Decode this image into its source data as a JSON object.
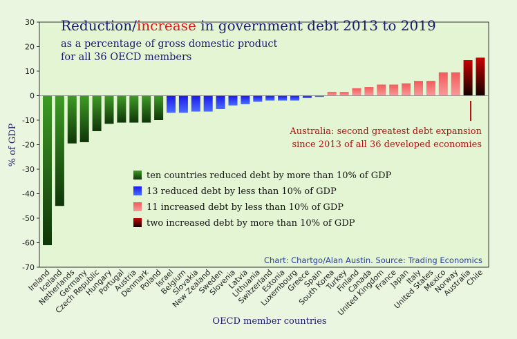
{
  "chart_data": {
    "type": "bar",
    "title_part1": "Reduction/",
    "title_highlight": "increase",
    "title_part2": " in government debt 2013 to 2019",
    "subtitle_line1": "as a percentage of gross domestic product",
    "subtitle_line2": "for all 36 OECD members",
    "xlabel": "OECD member countries",
    "ylabel": "% of GDP",
    "ylim": [
      -70,
      30
    ],
    "yticks": [
      -70,
      -60,
      -50,
      -40,
      -30,
      -20,
      -10,
      0,
      10,
      20,
      30
    ],
    "grid": false,
    "legend_position": "center",
    "categories": [
      "Ireland",
      "Iceland",
      "Netherlands",
      "Germany",
      "Czech Republic",
      "Hungary",
      "Portugal",
      "Austria",
      "Denmark",
      "Poland",
      "Israel",
      "Belgium",
      "Slovakia",
      "New Zealand",
      "Sweden",
      "Slovenia",
      "Latvia",
      "Lithuania",
      "Switzerland",
      "Estonia",
      "Luxembourg",
      "Greece",
      "Spain",
      "South Korea",
      "Turkey",
      "Finland",
      "Canada",
      "United Kingdom",
      "France",
      "Japan",
      "Italy",
      "United States",
      "Mexico",
      "Norway",
      "Australia",
      "Chile"
    ],
    "values": [
      -61,
      -45,
      -19.5,
      -19,
      -14.5,
      -11.5,
      -11,
      -11,
      -11,
      -10,
      -7,
      -7,
      -6.5,
      -6.5,
      -5.5,
      -4,
      -3.5,
      -2.5,
      -2,
      -2,
      -2,
      -1,
      -0.5,
      1.5,
      1.5,
      3,
      3.5,
      4.5,
      4.5,
      5,
      6,
      6,
      9.5,
      9.5,
      14.5,
      15.5
    ],
    "groups": [
      0,
      0,
      0,
      0,
      0,
      0,
      0,
      0,
      0,
      0,
      1,
      1,
      1,
      1,
      1,
      1,
      1,
      1,
      1,
      1,
      1,
      1,
      1,
      2,
      2,
      2,
      2,
      2,
      2,
      2,
      2,
      2,
      2,
      2,
      3,
      3
    ],
    "legend": [
      {
        "label": "ten countries reduced debt by more than 10% of GDP",
        "color": "#2f7d1a"
      },
      {
        "label": "13 reduced debt by less than 10% of GDP",
        "color": "#1e2fe0"
      },
      {
        "label": "11 increased debt by less than 10% of GDP",
        "color": "#f07070"
      },
      {
        "label": "two increased debt by more than 10% of GDP",
        "color": "#8b0000"
      }
    ],
    "annotation_line1": "Australia: second greatest debt expansion",
    "annotation_line2": "since 2013 of all 36 developed economies",
    "source": "Chart: Chartgo/Alan Austin. Source: Trading Economics",
    "colors": {
      "plot_bg": "#e3f5d3",
      "title": "#1a1a6e",
      "highlight": "#e0151a",
      "annotation": "#b01010",
      "source": "#2a3f9a"
    }
  }
}
